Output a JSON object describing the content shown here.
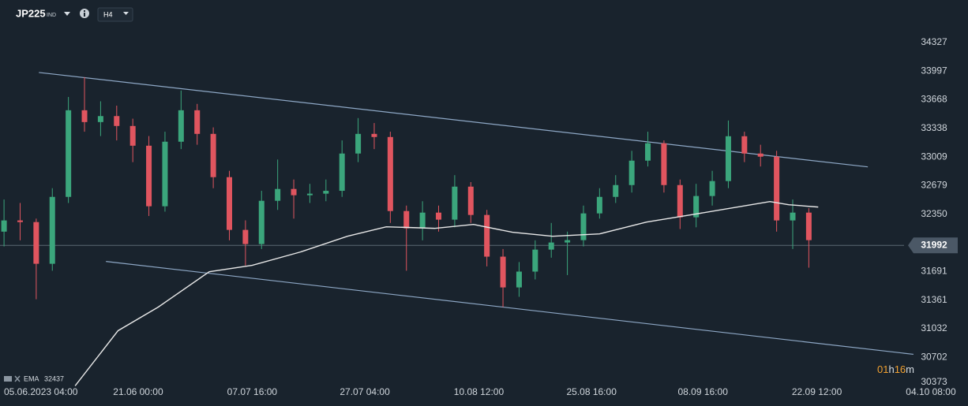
{
  "header": {
    "symbol": "JP225",
    "market": "IND",
    "timeframe": "H4"
  },
  "chart_data": {
    "type": "candlestick",
    "xlim": [
      -3,
      671
    ],
    "xticks": [
      {
        "value": 0,
        "label": "05.06.2023 04:00"
      },
      {
        "value": 100,
        "label": "21.06 00:00"
      },
      {
        "value": 185,
        "label": "07.07 16:00"
      },
      {
        "value": 269,
        "label": "27.07 04:00"
      },
      {
        "value": 354,
        "label": "10.08 12:00"
      },
      {
        "value": 438,
        "label": "25.08 16:00"
      },
      {
        "value": 521,
        "label": "08.09 16:00"
      },
      {
        "value": 606,
        "label": "22.09 12:00"
      },
      {
        "value": 691,
        "label": "04.10 08:00"
      }
    ],
    "ylim": [
      30370,
      34816
    ],
    "yticks": [
      34327,
      33997,
      33668,
      33338,
      33009,
      32679,
      32350,
      31691,
      31361,
      31032,
      30702,
      30373
    ],
    "up_color": "#3ba67c",
    "down_color": "#e0555f",
    "candles": {
      "x": [
        0,
        12,
        24,
        36,
        48,
        60,
        72,
        84,
        96,
        108,
        120,
        132,
        144,
        156,
        168,
        180,
        192,
        204,
        216,
        228,
        240,
        252,
        264,
        276,
        288,
        300,
        312,
        324,
        336,
        348,
        360,
        372,
        384,
        396,
        408,
        420,
        432,
        444,
        456,
        468,
        480,
        492,
        504,
        516,
        528,
        540,
        552,
        564,
        576,
        588,
        600
      ],
      "open": [
        32150,
        32279,
        32260,
        31780,
        32550,
        33547,
        33411,
        33480,
        33366,
        33139,
        32442,
        33185,
        33547,
        33275,
        32777,
        32170,
        32007,
        32505,
        32641,
        32569,
        32587,
        32620,
        33049,
        33275,
        33239,
        32387,
        32188,
        32369,
        32288,
        32668,
        32342,
        31862,
        31508,
        31690,
        31943,
        32025,
        32052,
        32360,
        32550,
        32686,
        32967,
        33167,
        32686,
        32315,
        32560,
        32732,
        33248,
        33049,
        33013,
        32279,
        32369
      ],
      "high": [
        32520,
        32480,
        32300,
        32650,
        33700,
        33928,
        33650,
        33600,
        33450,
        33250,
        33300,
        33774,
        33620,
        33350,
        32850,
        32280,
        32620,
        32980,
        32750,
        32700,
        32750,
        33200,
        33457,
        33400,
        33300,
        32450,
        32500,
        32450,
        32800,
        32720,
        32400,
        31950,
        31800,
        32050,
        32250,
        32150,
        32450,
        32650,
        32800,
        33080,
        33300,
        33200,
        32750,
        32700,
        32850,
        33429,
        33300,
        33150,
        33080,
        32520,
        32420
      ],
      "low": [
        31980,
        32050,
        31372,
        31700,
        32480,
        33300,
        33250,
        33200,
        32950,
        32330,
        32380,
        33100,
        33150,
        32650,
        32050,
        31760,
        31950,
        32400,
        32300,
        32480,
        32500,
        32550,
        32950,
        33100,
        32250,
        31700,
        32050,
        32150,
        32200,
        32250,
        31750,
        31282,
        31400,
        31600,
        31850,
        31650,
        31980,
        32300,
        32480,
        32600,
        32900,
        32600,
        32180,
        32200,
        32450,
        32650,
        32950,
        32900,
        32150,
        31950,
        31735
      ],
      "close": [
        32279,
        32260,
        31780,
        32550,
        33547,
        33411,
        33480,
        33366,
        33139,
        32442,
        33185,
        33547,
        33275,
        32777,
        32170,
        32007,
        32505,
        32641,
        32569,
        32587,
        32620,
        33049,
        33275,
        33239,
        32387,
        32188,
        32369,
        32288,
        32668,
        32342,
        31862,
        31508,
        31690,
        31943,
        32025,
        32052,
        32360,
        32550,
        32686,
        32967,
        33167,
        32686,
        32315,
        32560,
        32732,
        33248,
        33049,
        33013,
        32279,
        32369,
        32052
      ]
    },
    "ema": {
      "name": "EMA",
      "last_value": 32437,
      "color": "#e8e8e8",
      "x": [
        53,
        85,
        115,
        153,
        185,
        221,
        256,
        285,
        321,
        350,
        379,
        409,
        444,
        479,
        515,
        550,
        571,
        585,
        607
      ],
      "values": [
        30375,
        31010,
        31282,
        31689,
        31762,
        31916,
        32097,
        32206,
        32188,
        32233,
        32143,
        32097,
        32124,
        32260,
        32351,
        32442,
        32496,
        32460,
        32433
      ]
    },
    "trendlines": [
      {
        "color": "#8ea8c6",
        "x": [
          26,
          644
        ],
        "values": [
          33982,
          32895
        ]
      },
      {
        "color": "#8ea8c6",
        "x": [
          76,
          678
        ],
        "values": [
          31807,
          30738
        ]
      }
    ],
    "current_price": 31992,
    "countdown": [
      "01",
      "h",
      "16",
      "m"
    ]
  }
}
